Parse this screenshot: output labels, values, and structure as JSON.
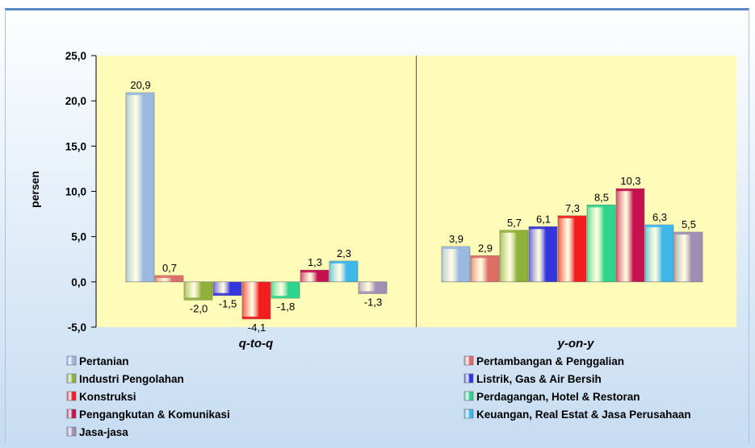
{
  "chart_data": {
    "type": "bar",
    "ylabel": "persen",
    "ylim": [
      -5,
      25
    ],
    "yticks": [
      "-5,0",
      "0,0",
      "5,0",
      "10,0",
      "15,0",
      "20,0",
      "25,0"
    ],
    "groups": [
      "q-to-q",
      "y-on-y"
    ],
    "series": [
      {
        "name": "Pertanian",
        "color": "#9ab9e0",
        "values": [
          20.9,
          3.9
        ],
        "labels": [
          "20,9",
          "3,9"
        ]
      },
      {
        "name": "Pertambangan  & Penggalian",
        "color": "#e06e66",
        "values": [
          0.7,
          2.9
        ],
        "labels": [
          "0,7",
          "2,9"
        ]
      },
      {
        "name": "Industri Pengolahan",
        "color": "#8fb13a",
        "values": [
          -2.0,
          5.7
        ],
        "labels": [
          "-2,0",
          "5,7"
        ]
      },
      {
        "name": "Listrik, Gas & Air Bersih",
        "color": "#3535dc",
        "values": [
          -1.5,
          6.1
        ],
        "labels": [
          "-1,5",
          "6,1"
        ]
      },
      {
        "name": "Konstruksi",
        "color": "#f21d1d",
        "values": [
          -4.1,
          7.3
        ],
        "labels": [
          "-4,1",
          "7,3"
        ]
      },
      {
        "name": "Perdagangan,  Hotel & Restoran",
        "color": "#2fd58a",
        "values": [
          -1.8,
          8.5
        ],
        "labels": [
          "-1,8",
          "8,5"
        ]
      },
      {
        "name": "Pengangkutan  & Komunikasi",
        "color": "#c5124f",
        "values": [
          1.3,
          10.3
        ],
        "labels": [
          "1,3",
          "10,3"
        ]
      },
      {
        "name": "Keuangan, Real Estat & Jasa Perusahaan",
        "color": "#3fb7ea",
        "values": [
          2.3,
          6.3
        ],
        "labels": [
          "2,3",
          "6,3"
        ]
      },
      {
        "name": "Jasa-jasa",
        "color": "#9f8fb3",
        "values": [
          -1.3,
          5.5
        ],
        "labels": [
          "-1,3",
          "5,5"
        ]
      }
    ],
    "legend": {
      "placement": "bottom",
      "rows": [
        [
          "Pertanian",
          "Pertambangan  & Penggalian"
        ],
        [
          "Industri Pengolahan",
          "Listrik, Gas & Air Bersih"
        ],
        [
          "Konstruksi",
          "Perdagangan,  Hotel & Restoran"
        ],
        [
          "Pengangkutan  & Komunikasi",
          "Keuangan, Real Estat & Jasa Perusahaan"
        ],
        [
          "Jasa-jasa"
        ]
      ]
    },
    "plot_background": "#fffbb8",
    "grid": false
  }
}
